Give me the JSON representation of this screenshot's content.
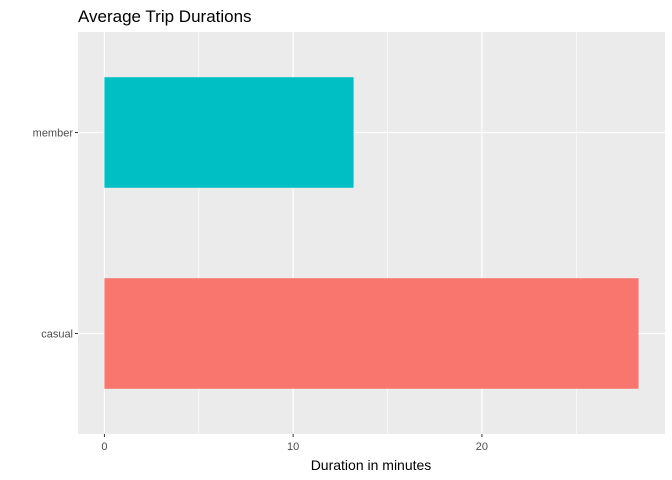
{
  "chart_data": {
    "type": "bar",
    "orientation": "horizontal",
    "title": "Average Trip Durations",
    "xlabel": "Duration in minutes",
    "ylabel": "",
    "categories": [
      "casual",
      "member"
    ],
    "values": [
      28.3,
      13.2
    ],
    "xlim": [
      -1.4,
      29.7
    ],
    "x_ticks": [
      0,
      10,
      20
    ],
    "x_minor_ticks": [
      5,
      15,
      25
    ],
    "grid": true,
    "legend": "none",
    "colors": {
      "casual": "#F8766D",
      "member": "#00BFC4",
      "panel_background": "#EBEBEB",
      "grid": "#FFFFFF",
      "tick_text": "#4D4D4D"
    }
  }
}
